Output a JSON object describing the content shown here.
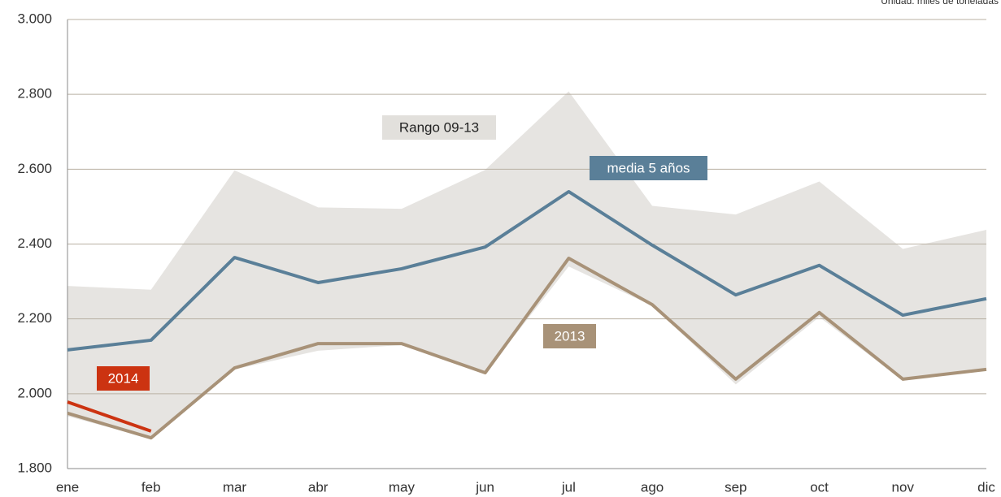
{
  "chart_data": {
    "type": "line",
    "subtitle": "Unidad: miles de toneladas",
    "categories": [
      "ene",
      "feb",
      "mar",
      "abr",
      "may",
      "jun",
      "jul",
      "ago",
      "sep",
      "oct",
      "nov",
      "dic"
    ],
    "band": {
      "name": "Rango 09-13",
      "color": "#e6e4e1",
      "upper": [
        2288,
        2278,
        2597,
        2498,
        2494,
        2598,
        2808,
        2502,
        2479,
        2567,
        2387,
        2438
      ],
      "lower": [
        1940,
        1880,
        2065,
        2115,
        2130,
        2055,
        2340,
        2235,
        2025,
        2205,
        2035,
        2062
      ]
    },
    "series": [
      {
        "name": "media 5 años",
        "color": "#5a7f98",
        "values": [
          2117,
          2143,
          2364,
          2297,
          2334,
          2392,
          2540,
          2397,
          2264,
          2343,
          2210,
          2254
        ]
      },
      {
        "name": "2013",
        "color": "#a89278",
        "values": [
          1948,
          1882,
          2069,
          2134,
          2134,
          2056,
          2362,
          2238,
          2039,
          2217,
          2039,
          2065
        ]
      },
      {
        "name": "2014",
        "color": "#cc3311",
        "values": [
          1978,
          1900,
          null,
          null,
          null,
          null,
          null,
          null,
          null,
          null,
          null,
          null
        ]
      }
    ],
    "ylim": [
      1800,
      3000
    ],
    "yticks": [
      {
        "value": 1800,
        "label": "1.800"
      },
      {
        "value": 2000,
        "label": "2.000"
      },
      {
        "value": 2200,
        "label": "2.200"
      },
      {
        "value": 2400,
        "label": "2.400"
      },
      {
        "value": 2600,
        "label": "2.600"
      },
      {
        "value": 2800,
        "label": "2.800"
      },
      {
        "value": 3000,
        "label": "3.000"
      }
    ],
    "grid": true
  }
}
